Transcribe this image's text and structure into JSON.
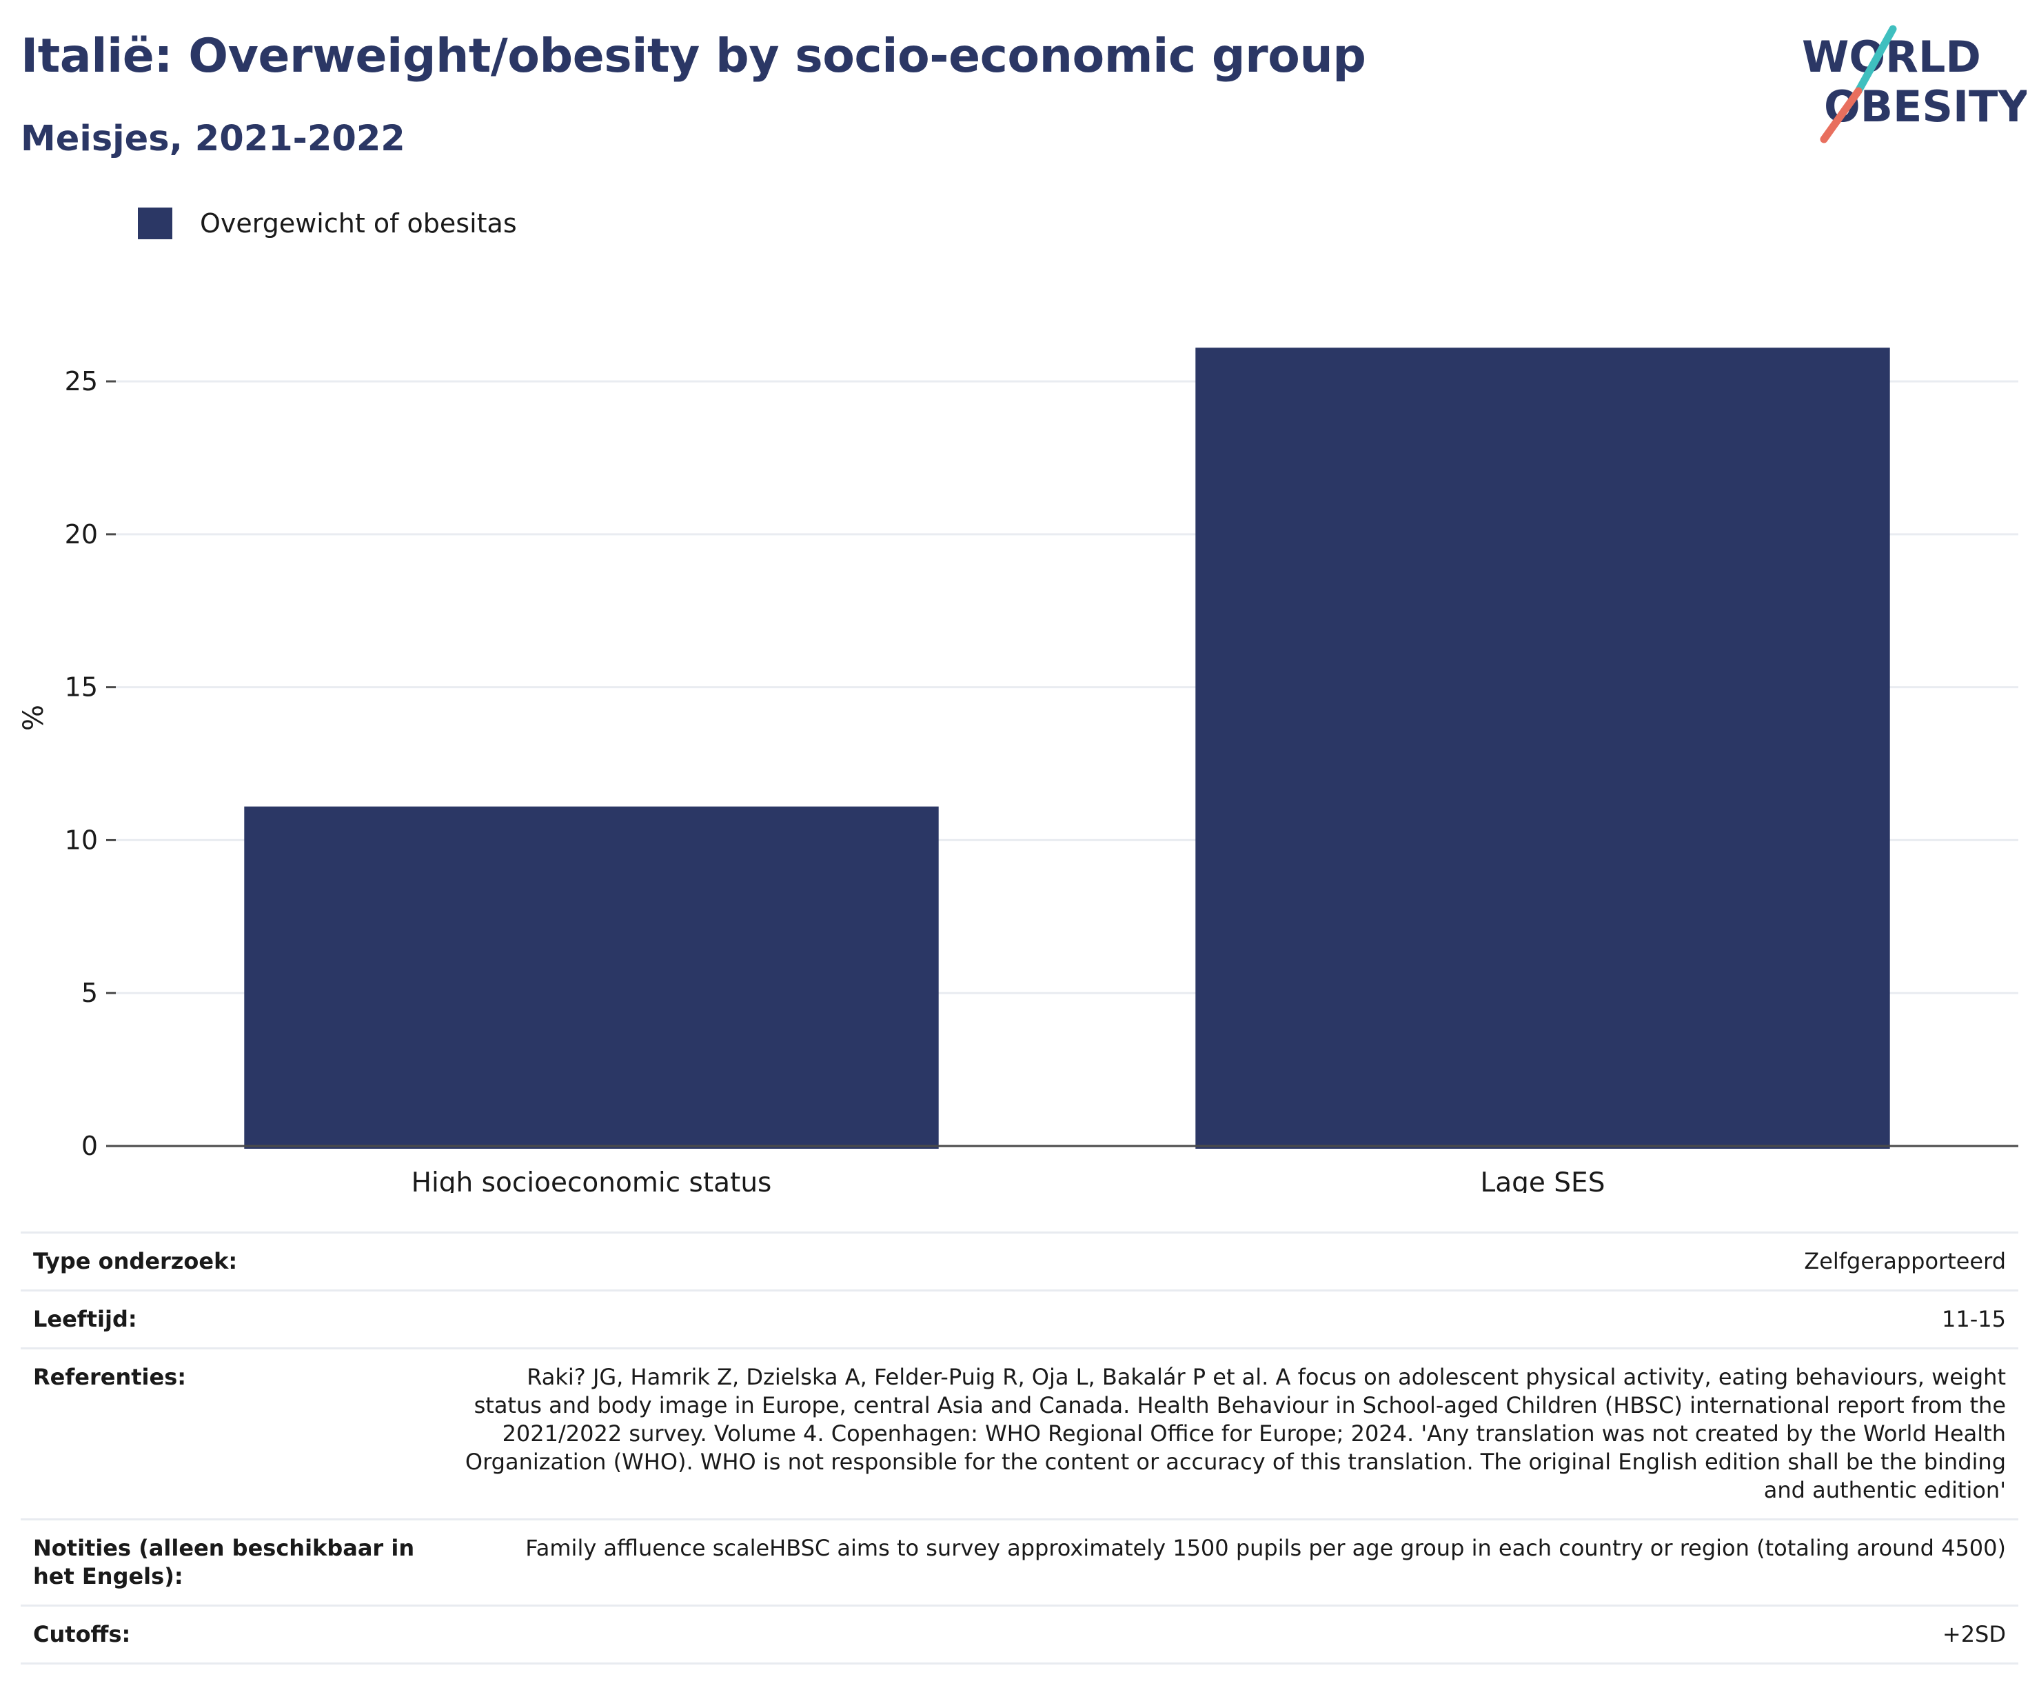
{
  "header": {
    "title": "Italië: Overweight/obesity by socio-economic group",
    "subtitle": "Meisjes, 2021-2022"
  },
  "logo": {
    "line1": "WORLD",
    "line2": "OBESITY",
    "colors": {
      "text": "#2b3765",
      "slash_top": "#3fbfbf",
      "slash_bottom": "#e86f5e"
    }
  },
  "chart_data": {
    "type": "bar",
    "categories": [
      "High socioeconomic status",
      "Lage SES"
    ],
    "series": [
      {
        "name": "Overgewicht of obesitas",
        "values": [
          11.1,
          26.1
        ],
        "color": "#2b3765"
      }
    ],
    "ylabel": "%",
    "xlabel": "",
    "ylim": [
      0,
      28
    ],
    "yticks": [
      0,
      5,
      10,
      15,
      20,
      25
    ],
    "grid": true,
    "legend_position": "top-left"
  },
  "meta": {
    "rows": [
      {
        "key": "Type onderzoek:",
        "value": "Zelfgerapporteerd"
      },
      {
        "key": "Leeftijd:",
        "value": "11-15"
      },
      {
        "key": "Referenties:",
        "value": "Raki? JG, Hamrik Z, Dzielska A, Felder-Puig R, Oja L, Bakalár P et al. A focus on adolescent physical activity, eating behaviours, weight status and body image in Europe, central Asia and Canada. Health Behaviour in School-aged Children (HBSC) international report from the 2021/2022 survey. Volume 4. Copenhagen: WHO Regional Office for Europe; 2024. 'Any translation was not created by the World Health Organization (WHO). WHO is not responsible for the content or accuracy of this translation. The original English edition shall be the binding and authentic edition'"
      },
      {
        "key": "Notities (alleen beschikbaar in het Engels):",
        "value": "Family affluence scaleHBSC aims to survey approximately 1500 pupils per age group in each country or region (totaling around 4500)"
      },
      {
        "key": "Cutoffs:",
        "value": "+2SD"
      }
    ]
  }
}
